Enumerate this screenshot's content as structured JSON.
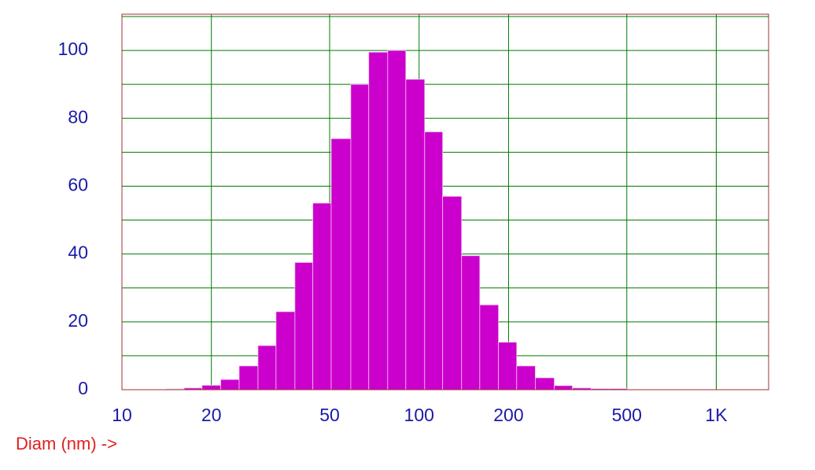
{
  "chart_data": {
    "type": "histogram",
    "x_label": "Diam (nm) ->",
    "bins": [
      14.1,
      16.2,
      18.6,
      21.5,
      24.8,
      28.7,
      33.0,
      38.2,
      43.9,
      50.6,
      58.9,
      67.7,
      78.4,
      90.2,
      104.4,
      120,
      139,
      160,
      185,
      213,
      246,
      285,
      328,
      379,
      436,
      502
    ],
    "counts": [
      0.2,
      0.5,
      1.3,
      3,
      7,
      13,
      23,
      37.5,
      55,
      74,
      90,
      99.5,
      100,
      91.5,
      76,
      57,
      39.5,
      25,
      14,
      7,
      3.5,
      1.2,
      0.5,
      0.3,
      0.3
    ],
    "color": "#cc00cc",
    "x_log": true,
    "xlim": [
      10,
      1500
    ],
    "xticks": [
      10,
      20,
      50,
      100,
      200,
      500,
      {
        "value": 1000,
        "label": "1K"
      }
    ],
    "ylim": [
      0,
      110
    ],
    "yticks": [
      0,
      20,
      40,
      60,
      80,
      100
    ],
    "y_minor_ticks": [
      10,
      30,
      50,
      70,
      90,
      110
    ],
    "grid": true
  }
}
